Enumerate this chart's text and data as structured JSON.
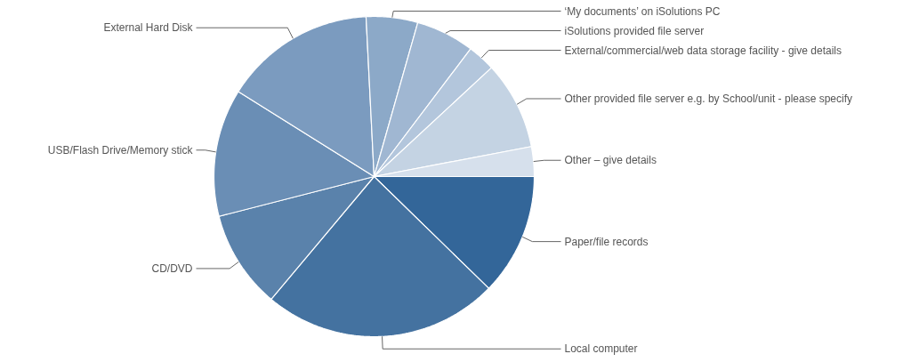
{
  "chart_data": {
    "type": "pie",
    "categories": [
      "Paper/file records",
      "Local computer",
      "CD/DVD",
      "USB/Flash Drive/Memory stick",
      "External Hard Disk",
      "‘My documents’ on iSolutions PC",
      "iSolutions provided file server",
      "External/commercial/web data storage facility - give details",
      "Other provided file server e.g. by School/unit - please specify",
      "Other – give details"
    ],
    "values": [
      12.3,
      23.8,
      9.9,
      12.9,
      15.3,
      5.2,
      5.9,
      2.8,
      8.9,
      3.0
    ],
    "colors": [
      "#336699",
      "#4472a0",
      "#5a82ab",
      "#6a8eb5",
      "#7b9bbf",
      "#8ca9c8",
      "#a0b7d2",
      "#b3c6dc",
      "#c4d3e3",
      "#d6e0ec"
    ]
  }
}
